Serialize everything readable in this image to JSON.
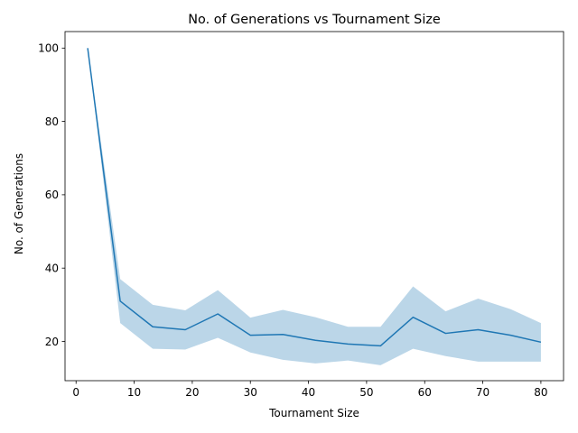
{
  "chart_data": {
    "type": "line",
    "title": "No. of Generations vs Tournament Size",
    "xlabel": "Tournament Size",
    "ylabel": "No. of Generations",
    "xlim": [
      -1.9,
      83.9
    ],
    "ylim": [
      9.3,
      104.5
    ],
    "xticks": [
      0,
      10,
      20,
      30,
      40,
      50,
      60,
      70,
      80
    ],
    "yticks": [
      20,
      40,
      60,
      80,
      100
    ],
    "grid": false,
    "legend": "none",
    "colors": {
      "line": "#1f77b4",
      "band": "#1f77b4",
      "band_opacity": 0.3
    },
    "series": [
      {
        "x": [
          2,
          7.6,
          13.2,
          18.8,
          24.4,
          30,
          35.6,
          41.2,
          46.8,
          52.4,
          58,
          63.6,
          69.2,
          74.8,
          80
        ],
        "y": [
          100,
          31,
          24,
          23.2,
          27.5,
          21.7,
          21.9,
          20.3,
          19.3,
          18.8,
          26.6,
          22.2,
          23.2,
          21.7,
          19.8
        ],
        "lower": [
          100,
          25,
          18,
          17.8,
          21,
          17,
          15,
          14,
          14.8,
          13.5,
          18,
          16,
          14.5,
          14.5,
          14.5
        ],
        "upper": [
          100,
          37,
          30,
          28.5,
          34,
          26.5,
          28.6,
          26.6,
          24,
          24,
          35,
          28.2,
          31.7,
          28.8,
          25
        ]
      }
    ]
  }
}
